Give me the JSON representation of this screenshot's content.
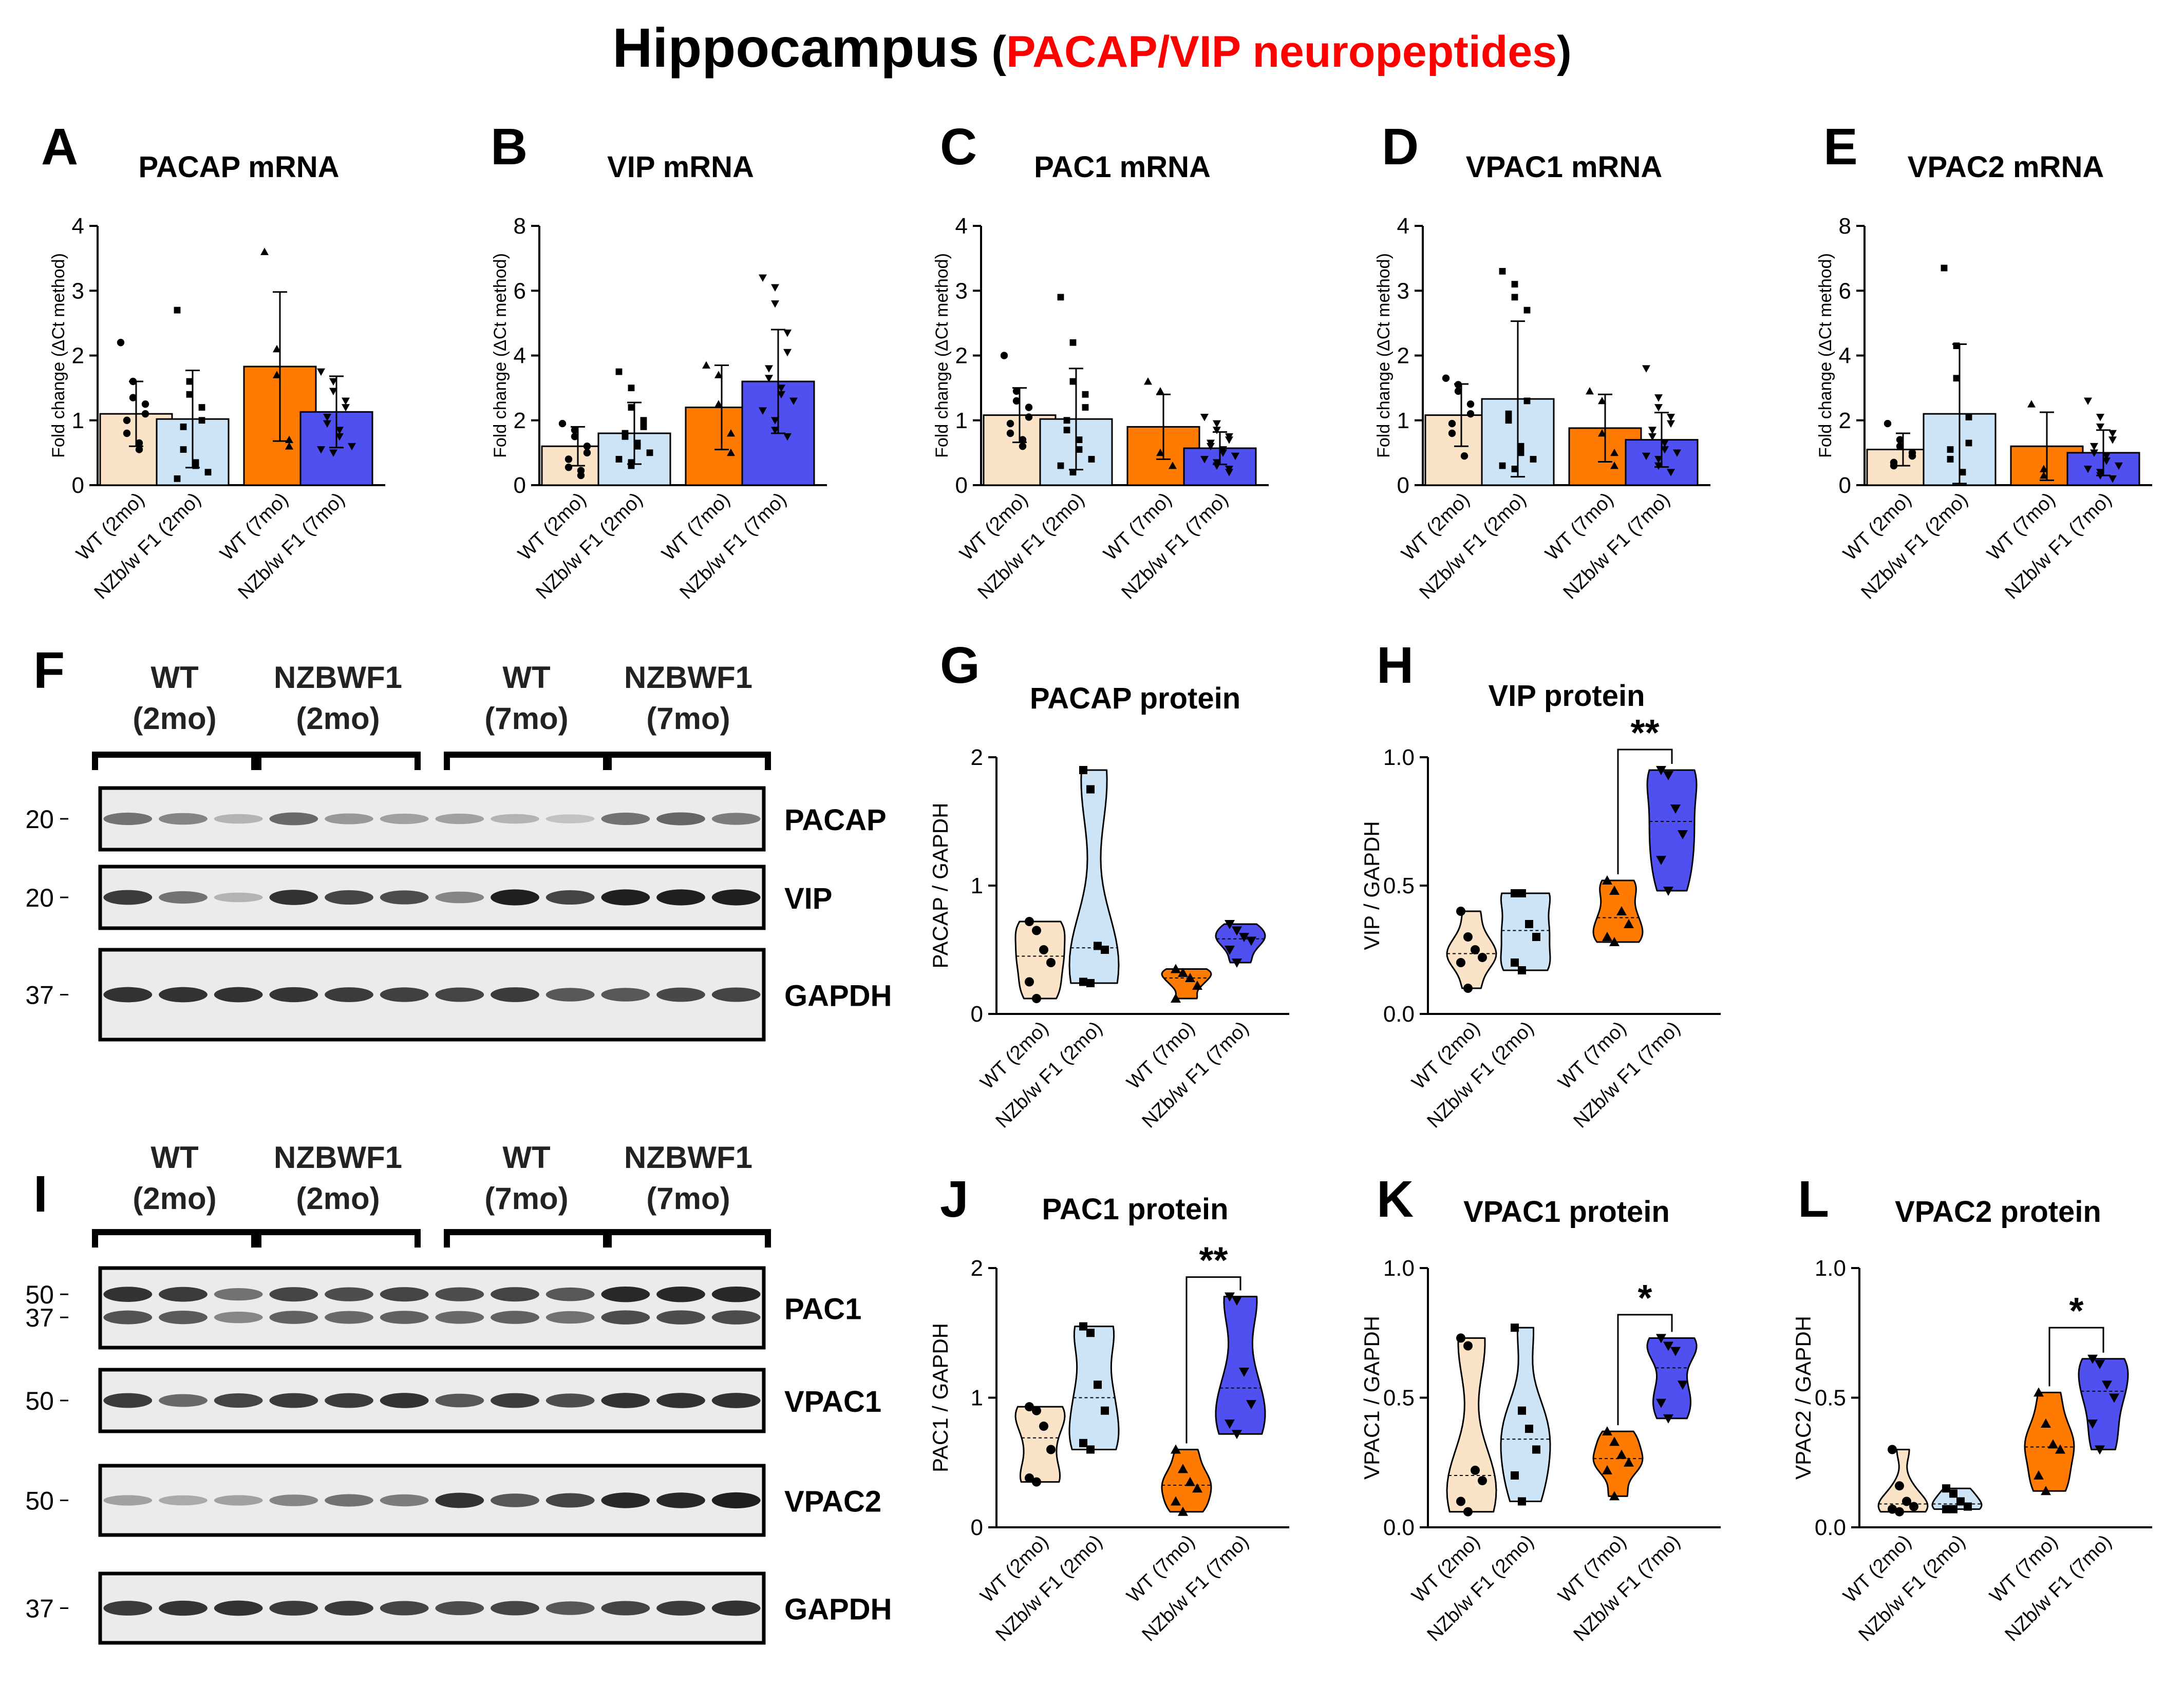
{
  "title": {
    "main": "Hippocampus",
    "open": " (",
    "sub": "PACAP/VIP neuropeptides",
    "close": ")"
  },
  "colors": {
    "wt2": "#fbe3c8",
    "nzb2": "#cce4f6",
    "wt7": "#ff7a00",
    "nzb7": "#5050f0",
    "title_accent": "#ff0000",
    "text": "#000000"
  },
  "group_labels": [
    "WT (2mo)",
    "NZb/w F1 (2mo)",
    "WT (7mo)",
    "NZb/w F1 (7mo)"
  ],
  "chart_data": [
    {
      "panel": "A",
      "title": "PACAP mRNA",
      "type": "bar",
      "ylabel": "Fold change (ΔCt method)",
      "ylim": [
        0,
        4
      ],
      "ticks": [
        0,
        1,
        2,
        3,
        4
      ],
      "categories": [
        "WT (2mo)",
        "NZb/w F1 (2mo)",
        "WT (7mo)",
        "NZb/w F1 (7mo)"
      ],
      "values": [
        1.1,
        1.02,
        1.83,
        1.13
      ],
      "sd": [
        0.5,
        0.75,
        1.15,
        0.55
      ],
      "markers": [
        "circle",
        "square",
        "triangle-up",
        "triangle-down"
      ],
      "points": [
        [
          2.2,
          1.6,
          1.35,
          1.25,
          1.1,
          1.0,
          0.8,
          0.65,
          0.55
        ],
        [
          2.7,
          1.6,
          1.4,
          1.2,
          1.0,
          0.9,
          0.55,
          0.35,
          0.3,
          0.2,
          0.1
        ],
        [
          3.6,
          2.1,
          1.7,
          0.7,
          0.6
        ],
        [
          1.75,
          1.6,
          1.45,
          1.3,
          1.2,
          1.05,
          0.95,
          0.85,
          0.75,
          0.6,
          0.55,
          0.5
        ]
      ]
    },
    {
      "panel": "B",
      "title": "VIP mRNA",
      "type": "bar",
      "ylabel": "Fold change (ΔCt method)",
      "ylim": [
        0,
        8
      ],
      "ticks": [
        0,
        2,
        4,
        6,
        8
      ],
      "categories": [
        "WT (2mo)",
        "NZb/w F1 (2mo)",
        "WT (7mo)",
        "NZb/w F1 (7mo)"
      ],
      "values": [
        1.2,
        1.6,
        2.4,
        3.2
      ],
      "sd": [
        0.6,
        0.95,
        1.3,
        1.6
      ],
      "markers": [
        "circle",
        "square",
        "triangle-up",
        "triangle-down"
      ],
      "points": [
        [
          1.9,
          1.7,
          1.5,
          1.2,
          1.0,
          0.8,
          0.55,
          0.45,
          0.3
        ],
        [
          3.5,
          3.0,
          2.4,
          2.0,
          1.8,
          1.6,
          1.5,
          1.3,
          1.2,
          1.0,
          0.8,
          0.7,
          0.6
        ],
        [
          3.7,
          3.4,
          2.5,
          1.6,
          1.0
        ],
        [
          6.4,
          6.1,
          5.6,
          4.7,
          4.1,
          3.6,
          3.3,
          3.0,
          2.8,
          2.6,
          2.3,
          2.0,
          1.7,
          1.5
        ]
      ]
    },
    {
      "panel": "C",
      "title": "PAC1 mRNA",
      "type": "bar",
      "ylabel": "Fold change (ΔCt method)",
      "ylim": [
        0,
        4
      ],
      "ticks": [
        0,
        1,
        2,
        3,
        4
      ],
      "categories": [
        "WT (2mo)",
        "NZb/w F1 (2mo)",
        "WT (7mo)",
        "NZb/w F1 (7mo)"
      ],
      "values": [
        1.08,
        1.02,
        0.9,
        0.57
      ],
      "sd": [
        0.42,
        0.78,
        0.5,
        0.25
      ],
      "markers": [
        "circle",
        "square",
        "triangle-up",
        "triangle-down"
      ],
      "points": [
        [
          2.0,
          1.45,
          1.3,
          1.2,
          1.05,
          0.95,
          0.8,
          0.7,
          0.6
        ],
        [
          2.9,
          2.2,
          1.6,
          1.4,
          1.2,
          1.0,
          0.85,
          0.7,
          0.55,
          0.4,
          0.3,
          0.2
        ],
        [
          1.6,
          1.45,
          0.5,
          0.3
        ],
        [
          1.05,
          0.95,
          0.85,
          0.75,
          0.7,
          0.65,
          0.6,
          0.55,
          0.5,
          0.45,
          0.4,
          0.35,
          0.3,
          0.25,
          0.2
        ]
      ]
    },
    {
      "panel": "D",
      "title": "VPAC1 mRNA",
      "type": "bar",
      "ylabel": "Fold change (ΔCt method)",
      "ylim": [
        0,
        4
      ],
      "ticks": [
        0,
        1,
        2,
        3,
        4
      ],
      "categories": [
        "WT (2mo)",
        "NZb/w F1 (2mo)",
        "WT (7mo)",
        "NZb/w F1 (7mo)"
      ],
      "values": [
        1.08,
        1.33,
        0.88,
        0.7
      ],
      "sd": [
        0.48,
        1.2,
        0.52,
        0.42
      ],
      "markers": [
        "circle",
        "square",
        "triangle-up",
        "triangle-down"
      ],
      "points": [
        [
          1.65,
          1.55,
          1.45,
          1.25,
          1.1,
          0.95,
          0.8,
          0.45
        ],
        [
          3.3,
          3.1,
          2.9,
          2.7,
          1.3,
          1.1,
          1.0,
          0.6,
          0.5,
          0.4,
          0.3,
          0.25
        ],
        [
          1.45,
          1.3,
          0.8,
          0.5,
          0.3
        ],
        [
          1.8,
          1.35,
          1.2,
          1.05,
          0.95,
          0.85,
          0.75,
          0.65,
          0.55,
          0.5,
          0.45,
          0.4,
          0.3,
          0.2
        ]
      ]
    },
    {
      "panel": "E",
      "title": "VPAC2 mRNA",
      "type": "bar",
      "ylabel": "Fold change (ΔCt method)",
      "ylim": [
        0,
        8
      ],
      "ticks": [
        0,
        2,
        4,
        6,
        8
      ],
      "categories": [
        "WT (2mo)",
        "NZb/w F1 (2mo)",
        "WT (7mo)",
        "NZb/w F1 (7mo)"
      ],
      "values": [
        1.1,
        2.2,
        1.2,
        1.0
      ],
      "sd": [
        0.5,
        2.15,
        1.05,
        0.7
      ],
      "markers": [
        "circle",
        "square",
        "triangle-up",
        "triangle-down"
      ],
      "points": [
        [
          1.9,
          1.4,
          1.2,
          1.0,
          0.9,
          0.7,
          0.6
        ],
        [
          6.7,
          4.3,
          3.3,
          2.1,
          1.3,
          1.1,
          0.8,
          0.4
        ],
        [
          2.5,
          0.5,
          0.3
        ],
        [
          2.6,
          2.1,
          1.8,
          1.6,
          1.4,
          1.2,
          1.0,
          0.9,
          0.75,
          0.6,
          0.5,
          0.4,
          0.3,
          0.2
        ]
      ]
    },
    {
      "panel": "G",
      "title": "PACAP protein",
      "type": "violin",
      "ylabel": "PACAP / GAPDH",
      "ylim": [
        0,
        2
      ],
      "ticks": [
        0,
        1,
        2
      ],
      "tick_labels": [
        "0",
        "1",
        "2"
      ],
      "categories": [
        "WT (2mo)",
        "NZb/w F1 (2mo)",
        "WT (7mo)",
        "NZb/w F1 (7mo)"
      ],
      "markers": [
        "circle",
        "square",
        "triangle-up",
        "triangle-down"
      ],
      "points": [
        [
          0.72,
          0.65,
          0.5,
          0.4,
          0.25,
          0.12
        ],
        [
          1.9,
          1.75,
          0.53,
          0.5,
          0.25,
          0.24
        ],
        [
          0.35,
          0.32,
          0.28,
          0.22,
          0.12
        ],
        [
          0.7,
          0.65,
          0.6,
          0.57,
          0.5,
          0.4
        ]
      ]
    },
    {
      "panel": "H",
      "title": "VIP protein",
      "type": "violin",
      "ylabel": "VIP / GAPDH",
      "ylim": [
        0,
        1
      ],
      "ticks": [
        0,
        0.5,
        1
      ],
      "tick_labels": [
        "0.0",
        "0.5",
        "1.0"
      ],
      "categories": [
        "WT (2mo)",
        "NZb/w F1 (2mo)",
        "WT (7mo)",
        "NZb/w F1 (7mo)"
      ],
      "markers": [
        "circle",
        "square",
        "triangle-up",
        "triangle-down"
      ],
      "points": [
        [
          0.4,
          0.3,
          0.25,
          0.22,
          0.2,
          0.1
        ],
        [
          0.47,
          0.47,
          0.35,
          0.3,
          0.2,
          0.17
        ],
        [
          0.52,
          0.48,
          0.4,
          0.35,
          0.3,
          0.28
        ],
        [
          0.95,
          0.93,
          0.8,
          0.7,
          0.6,
          0.48
        ]
      ],
      "significance": [
        {
          "from": 2,
          "to": 3,
          "label": "**",
          "y": 1.03
        }
      ]
    },
    {
      "panel": "J",
      "title": "PAC1 protein",
      "type": "violin",
      "ylabel": "PAC1 / GAPDH",
      "ylim": [
        0,
        2
      ],
      "ticks": [
        0,
        1,
        2
      ],
      "tick_labels": [
        "0",
        "1",
        "2"
      ],
      "categories": [
        "WT (2mo)",
        "NZb/w F1 (2mo)",
        "WT (7mo)",
        "NZb/w F1 (7mo)"
      ],
      "markers": [
        "circle",
        "square",
        "triangle-up",
        "triangle-down"
      ],
      "points": [
        [
          0.93,
          0.9,
          0.78,
          0.6,
          0.38,
          0.35
        ],
        [
          1.55,
          1.5,
          1.1,
          0.9,
          0.65,
          0.6
        ],
        [
          0.6,
          0.45,
          0.35,
          0.3,
          0.2,
          0.12
        ],
        [
          1.78,
          1.75,
          1.2,
          0.95,
          0.8,
          0.72
        ]
      ],
      "significance": [
        {
          "from": 2,
          "to": 3,
          "label": "**",
          "y": 1.93
        }
      ]
    },
    {
      "panel": "K",
      "title": "VPAC1 protein",
      "type": "violin",
      "ylabel": "VPAC1 / GAPDH",
      "ylim": [
        0,
        1
      ],
      "ticks": [
        0,
        0.5,
        1
      ],
      "tick_labels": [
        "0.0",
        "0.5",
        "1.0"
      ],
      "categories": [
        "WT (2mo)",
        "NZb/w F1 (2mo)",
        "WT (7mo)",
        "NZb/w F1 (7mo)"
      ],
      "markers": [
        "circle",
        "square",
        "triangle-up",
        "triangle-down"
      ],
      "points": [
        [
          0.73,
          0.7,
          0.22,
          0.18,
          0.1,
          0.06
        ],
        [
          0.77,
          0.45,
          0.38,
          0.3,
          0.2,
          0.1
        ],
        [
          0.37,
          0.33,
          0.28,
          0.25,
          0.22,
          0.12
        ],
        [
          0.73,
          0.7,
          0.68,
          0.55,
          0.48,
          0.42
        ]
      ],
      "significance": [
        {
          "from": 2,
          "to": 3,
          "label": "*",
          "y": 0.82
        }
      ]
    },
    {
      "panel": "L",
      "title": "VPAC2 protein",
      "type": "violin",
      "ylabel": "VPAC2 / GAPDH",
      "ylim": [
        0,
        1
      ],
      "ticks": [
        0,
        0.5,
        1
      ],
      "tick_labels": [
        "0.0",
        "0.5",
        "1.0"
      ],
      "categories": [
        "WT (2mo)",
        "NZb/w F1 (2mo)",
        "WT (7mo)",
        "NZb/w F1 (7mo)"
      ],
      "markers": [
        "circle",
        "square",
        "triangle-up",
        "triangle-down"
      ],
      "points": [
        [
          0.3,
          0.16,
          0.1,
          0.08,
          0.07,
          0.06
        ],
        [
          0.15,
          0.13,
          0.1,
          0.08,
          0.07,
          0.07
        ],
        [
          0.52,
          0.4,
          0.32,
          0.3,
          0.2,
          0.14
        ],
        [
          0.65,
          0.63,
          0.55,
          0.5,
          0.4,
          0.3
        ]
      ],
      "significance": [
        {
          "from": 2,
          "to": 3,
          "label": "*",
          "y": 0.77
        }
      ]
    }
  ],
  "blots": [
    {
      "panel": "F",
      "groups": [
        {
          "name": "WT",
          "age": "(2mo)"
        },
        {
          "name": "NZBWF1",
          "age": "(2mo)"
        },
        {
          "name": "WT",
          "age": "(7mo)"
        },
        {
          "name": "NZBWF1",
          "age": "(7mo)"
        }
      ],
      "strips": [
        {
          "label": "PACAP",
          "marker": "20",
          "intensity": [
            0.55,
            0.45,
            0.2,
            0.6,
            0.35,
            0.3,
            0.3,
            0.2,
            0.12,
            0.55,
            0.62,
            0.5
          ]
        },
        {
          "label": "VIP",
          "marker": "20",
          "intensity": [
            0.85,
            0.55,
            0.2,
            0.9,
            0.8,
            0.75,
            0.45,
            1.0,
            0.8,
            1.0,
            1.0,
            1.0
          ]
        },
        {
          "label": "GAPDH",
          "marker": "37",
          "intensity": [
            0.9,
            0.9,
            0.9,
            0.88,
            0.85,
            0.82,
            0.8,
            0.85,
            0.7,
            0.7,
            0.78,
            0.8
          ]
        }
      ]
    },
    {
      "panel": "I",
      "groups": [
        {
          "name": "WT",
          "age": "(2mo)"
        },
        {
          "name": "NZBWF1",
          "age": "(2mo)"
        },
        {
          "name": "WT",
          "age": "(7mo)"
        },
        {
          "name": "NZBWF1",
          "age": "(7mo)"
        }
      ],
      "strips": [
        {
          "label": "PAC1",
          "markers": [
            "50",
            "37"
          ],
          "intensity": [
            0.9,
            0.85,
            0.55,
            0.8,
            0.75,
            0.8,
            0.75,
            0.8,
            0.7,
            0.95,
            0.95,
            0.95
          ]
        },
        {
          "label": "VPAC1",
          "marker": "50",
          "intensity": [
            0.85,
            0.6,
            0.8,
            0.85,
            0.85,
            0.9,
            0.7,
            0.85,
            0.75,
            0.9,
            0.9,
            0.9
          ]
        },
        {
          "label": "VPAC2",
          "marker": "50",
          "intensity": [
            0.3,
            0.25,
            0.3,
            0.45,
            0.55,
            0.5,
            0.9,
            0.7,
            0.8,
            0.95,
            0.95,
            1.0
          ]
        },
        {
          "label": "GAPDH",
          "marker": "37",
          "intensity": [
            0.85,
            0.88,
            0.9,
            0.85,
            0.85,
            0.8,
            0.75,
            0.8,
            0.7,
            0.8,
            0.85,
            0.9
          ]
        }
      ]
    }
  ]
}
